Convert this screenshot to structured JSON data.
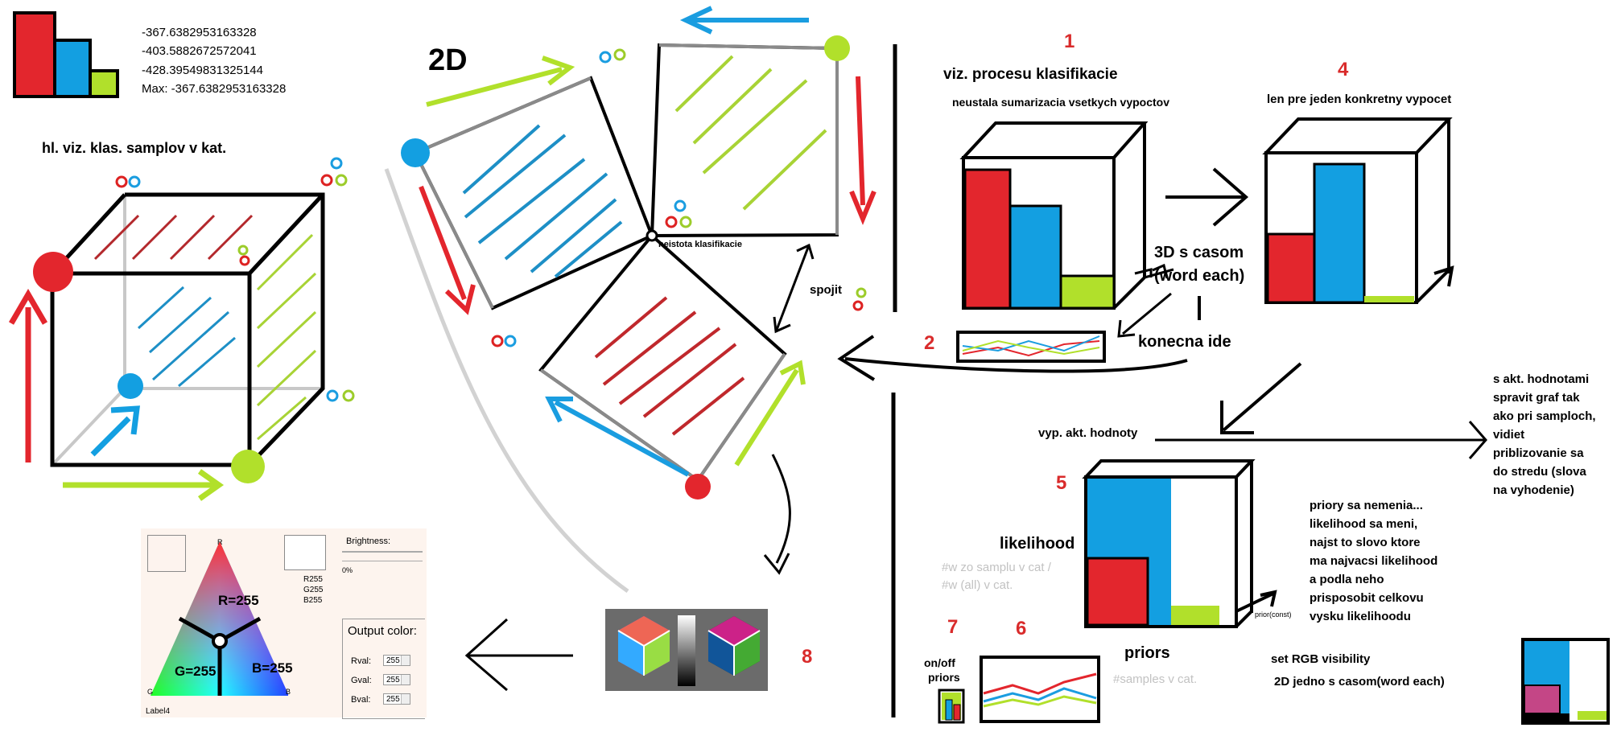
{
  "score_block": {
    "values": [
      "-367.6382953163328",
      "-403.5882672572041",
      "-428.39549831325144"
    ],
    "max": "Max: -367.6382953163328"
  },
  "cube_title": "hl. viz. klas. samplov v kat.",
  "title_2d": "2D",
  "neistota": "neistota klasifikacie",
  "spojit": "spojit",
  "labels": {
    "n1": "1",
    "n2": "2",
    "n4": "4",
    "n5": "5",
    "n6": "6",
    "n7": "7",
    "n8": "8",
    "viz_procesu": "viz. procesu klasifikacie",
    "neustala": "neustala sumarizacia  vsetkych vypoctov",
    "len_pre": "len pre jeden konkretny vypocet",
    "td_line1": "3D s casom",
    "td_line2": "(word each)",
    "konecna": "konecna ide",
    "vyp_akt": "vyp. akt. hodnoty",
    "s_akt": [
      "s akt. hodnotami",
      "spravit graf tak",
      "ako pri samploch,",
      "vidiet",
      "priblizovanie sa",
      "do stredu (slova",
      "na vyhodenie)"
    ],
    "likelihood": "likelihood",
    "w_line1": "#w  zo samplu v cat /",
    "w_line2": "#w (all) v cat.",
    "prior_const": "prior(const)",
    "priory": [
      "priory sa nemenia...",
      "likelihood sa meni,",
      "najst to slovo ktore",
      "ma najvacsi likelihood",
      "a podla neho",
      "prisposobit celkovu",
      "vysku likelihoodu"
    ],
    "priors": "priors",
    "samples": "#samples v cat.",
    "onoff1": "on/off",
    "onoff2": "priors",
    "set_rgb": "set RGB visibility",
    "twod_jedno": "2D jedno s casom(word each)"
  },
  "color_ui": {
    "brightness": "Brightness:",
    "zero": "0%",
    "r_lbl": "R255",
    "g_lbl": "G255",
    "b_lbl": "B255",
    "r_eq": "R=255",
    "g_eq": "G=255",
    "b_eq": "B=255",
    "output": "Output color:",
    "rval": "Rval:",
    "gval": "Gval:",
    "bval": "Bval:",
    "v255": "255",
    "label4": "Label4",
    "corner_r": "R",
    "corner_g": "G",
    "corner_b": "B"
  },
  "colors": {
    "red": "#e3262d",
    "blue": "#139fe1",
    "green": "#b1e02b"
  }
}
